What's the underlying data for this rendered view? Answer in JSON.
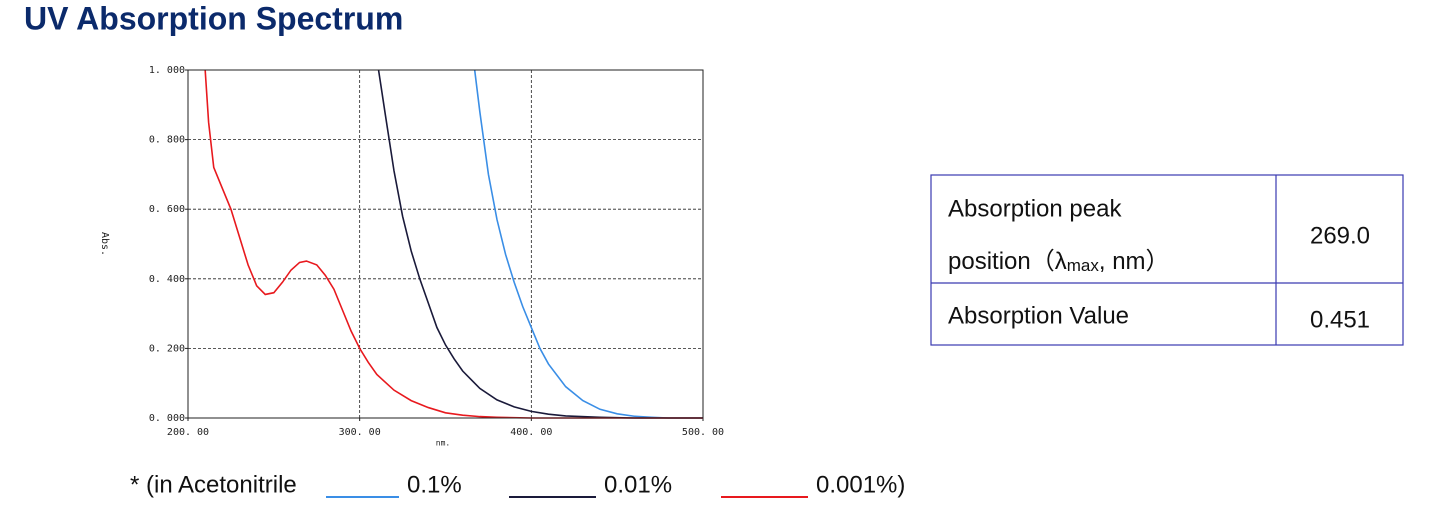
{
  "chart_data": {
    "type": "line",
    "title": "UV Absorption Spectrum",
    "x_label": "nm.",
    "y_label": "Abs.",
    "xlim": [
      200,
      500
    ],
    "ylim": [
      0,
      1
    ],
    "xticks": [
      {
        "value": 200,
        "label": "200. 00"
      },
      {
        "value": 300,
        "label": "300. 00"
      },
      {
        "value": 400,
        "label": "400. 00"
      },
      {
        "value": 500,
        "label": "500. 00"
      }
    ],
    "yticks": [
      {
        "value": 0,
        "label": "0. 000"
      },
      {
        "value": 0.2,
        "label": "0. 200"
      },
      {
        "value": 0.4,
        "label": "0. 400"
      },
      {
        "value": 0.6,
        "label": "0. 600"
      },
      {
        "value": 0.8,
        "label": "0. 800"
      },
      {
        "value": 1,
        "label": "1. 000"
      }
    ],
    "grid": true,
    "legend_prefix": "* (in Acetonitrile",
    "series": [
      {
        "name": "0.1%",
        "color": "#3a8ee6",
        "x": [
          367,
          370,
          375,
          380,
          385,
          390,
          395,
          400,
          405,
          410,
          420,
          430,
          440,
          450,
          460,
          470,
          480,
          500
        ],
        "values": [
          1.0,
          0.88,
          0.7,
          0.57,
          0.47,
          0.39,
          0.32,
          0.26,
          0.2,
          0.155,
          0.09,
          0.05,
          0.025,
          0.012,
          0.005,
          0.002,
          0,
          0
        ]
      },
      {
        "name": "0.01%",
        "color": "#1a1a3a",
        "x": [
          311,
          315,
          320,
          325,
          330,
          335,
          340,
          345,
          350,
          355,
          360,
          370,
          380,
          390,
          400,
          410,
          420,
          440,
          460,
          500
        ],
        "values": [
          1.0,
          0.87,
          0.71,
          0.58,
          0.48,
          0.4,
          0.33,
          0.26,
          0.21,
          0.17,
          0.135,
          0.085,
          0.052,
          0.032,
          0.019,
          0.011,
          0.006,
          0.002,
          0,
          0
        ]
      },
      {
        "name": "0.001%)",
        "color": "#e8191e",
        "x": [
          210,
          212,
          215,
          220,
          225,
          230,
          235,
          240,
          245,
          250,
          255,
          260,
          265,
          269,
          275,
          280,
          285,
          290,
          295,
          300,
          305,
          310,
          320,
          330,
          340,
          350,
          360,
          370,
          380,
          400,
          500
        ],
        "values": [
          1.0,
          0.85,
          0.72,
          0.66,
          0.6,
          0.52,
          0.44,
          0.38,
          0.355,
          0.36,
          0.39,
          0.425,
          0.447,
          0.451,
          0.44,
          0.41,
          0.37,
          0.31,
          0.25,
          0.2,
          0.16,
          0.125,
          0.08,
          0.05,
          0.03,
          0.015,
          0.008,
          0.004,
          0.002,
          0,
          0
        ]
      }
    ]
  },
  "table": {
    "rows": [
      [
        {
          "line1": "Absorption peak",
          "line2": "position（λ",
          "sub": "max",
          "tail": ", nm）"
        },
        "269.0"
      ],
      [
        "Absorption Value",
        "0.451"
      ]
    ]
  }
}
